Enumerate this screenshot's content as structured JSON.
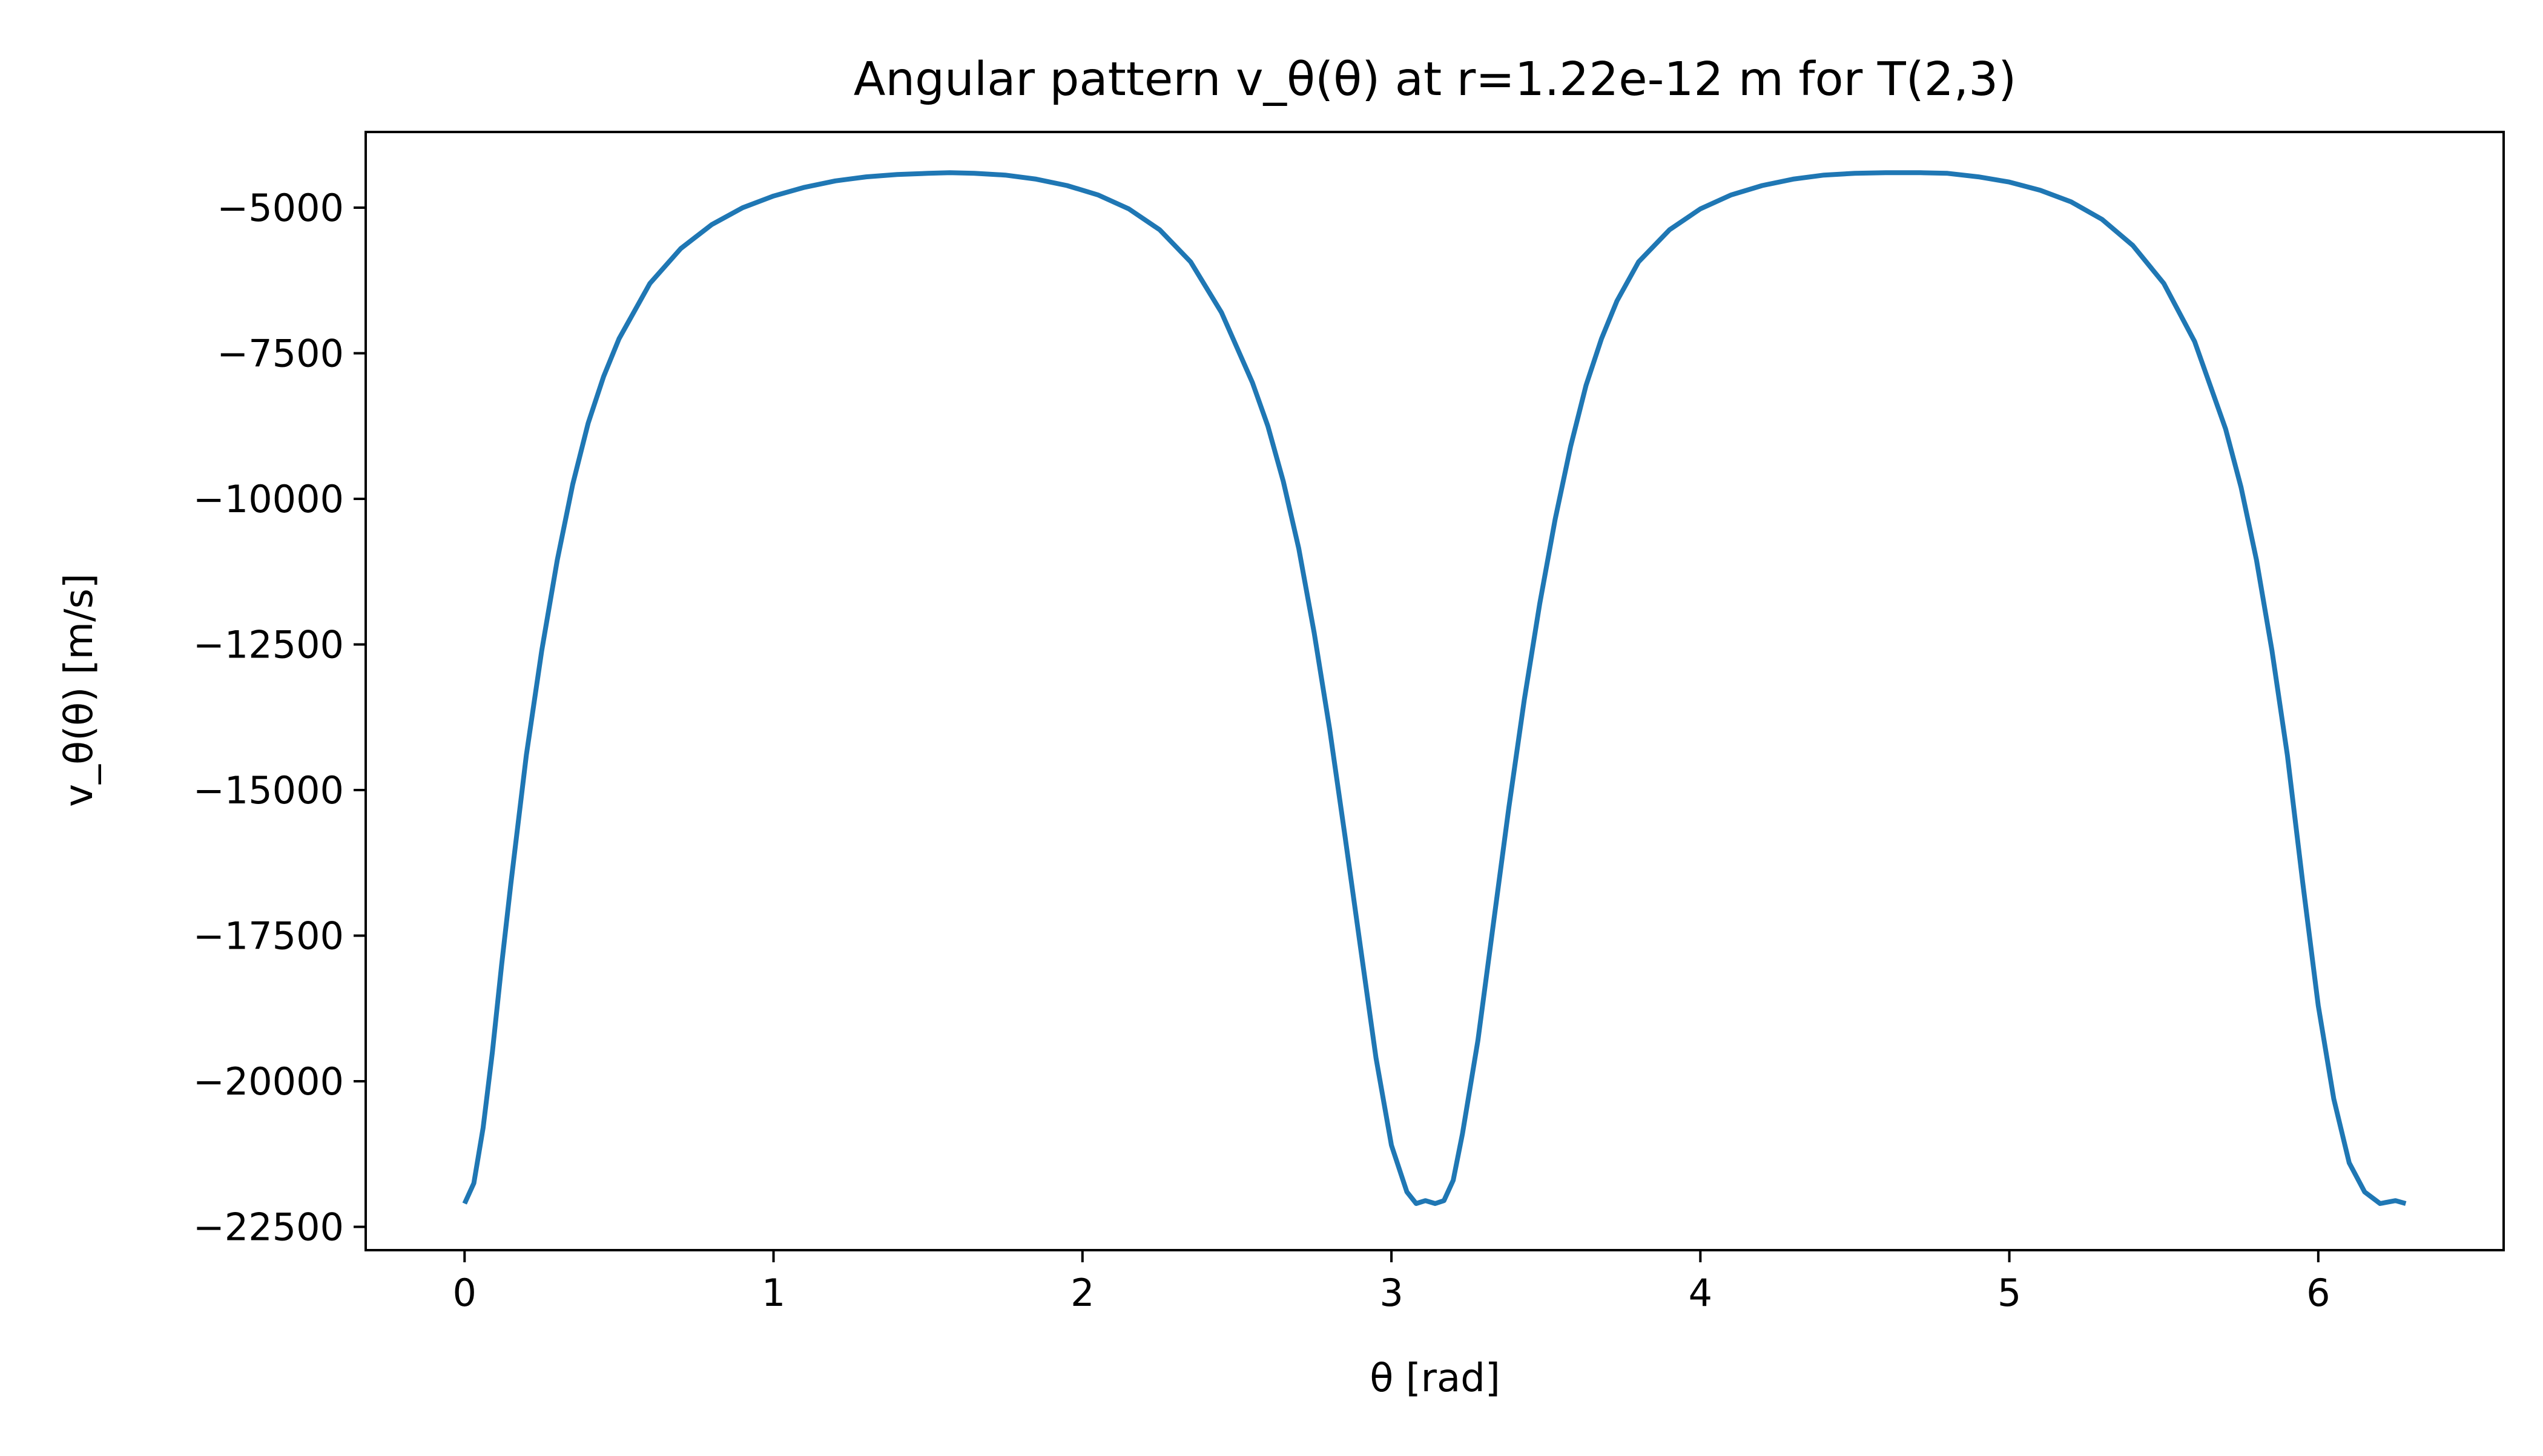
{
  "chart_data": {
    "type": "line",
    "title": "Angular pattern v_θ(θ) at r=1.22e-12 m for T(2,3)",
    "xlabel": "θ [rad]",
    "ylabel": "v_θ(θ) [m/s]",
    "xlim": [
      -0.32,
      6.6
    ],
    "ylim": [
      -22900,
      -3700
    ],
    "xticks": [
      0,
      1,
      2,
      3,
      4,
      5,
      6
    ],
    "xtick_labels": [
      "0",
      "1",
      "2",
      "3",
      "4",
      "5",
      "6"
    ],
    "yticks": [
      -5000,
      -7500,
      -10000,
      -12500,
      -15000,
      -17500,
      -20000,
      -22500
    ],
    "ytick_labels": [
      "−5000",
      "−7500",
      "−10000",
      "−12500",
      "−15000",
      "−17500",
      "−20000",
      "−22500"
    ],
    "grid": false,
    "legend": "none",
    "line_color": "#1f77b4",
    "series": [
      {
        "x": [
          0,
          0.03,
          0.06,
          0.09,
          0.12,
          0.15,
          0.2,
          0.25,
          0.3,
          0.35,
          0.4,
          0.45,
          0.5,
          0.6,
          0.7,
          0.8,
          0.9,
          1.0,
          1.1,
          1.2,
          1.3,
          1.4,
          1.5,
          1.5708,
          1.65,
          1.75,
          1.85,
          1.95,
          2.05,
          2.15,
          2.25,
          2.35,
          2.45,
          2.55,
          2.6,
          2.65,
          2.7,
          2.75,
          2.8,
          2.85,
          2.9,
          2.95,
          3.0,
          3.05,
          3.08,
          3.11,
          3.1416,
          3.17,
          3.2,
          3.23,
          3.28,
          3.33,
          3.38,
          3.43,
          3.48,
          3.53,
          3.58,
          3.63,
          3.68,
          3.73,
          3.8,
          3.9,
          4.0,
          4.1,
          4.2,
          4.3,
          4.4,
          4.5,
          4.6,
          4.7124,
          4.8,
          4.9,
          5.0,
          5.1,
          5.2,
          5.3,
          5.4,
          5.5,
          5.6,
          5.7,
          5.75,
          5.8,
          5.85,
          5.9,
          5.95,
          6.0,
          6.05,
          6.1,
          6.15,
          6.2,
          6.25,
          6.2832
        ],
        "y": [
          -22100,
          -21750,
          -20800,
          -19500,
          -18000,
          -16600,
          -14400,
          -12600,
          -11050,
          -9750,
          -8700,
          -7900,
          -7250,
          -6300,
          -5700,
          -5290,
          -5000,
          -4800,
          -4650,
          -4540,
          -4470,
          -4430,
          -4410,
          -4400,
          -4410,
          -4440,
          -4510,
          -4620,
          -4780,
          -5020,
          -5380,
          -5930,
          -6800,
          -8000,
          -8750,
          -9700,
          -10850,
          -12300,
          -13950,
          -15800,
          -17700,
          -19600,
          -21100,
          -21900,
          -22100,
          -22050,
          -22100,
          -22050,
          -21700,
          -20900,
          -19300,
          -17300,
          -15300,
          -13450,
          -11800,
          -10350,
          -9100,
          -8050,
          -7250,
          -6600,
          -5930,
          -5380,
          -5020,
          -4780,
          -4620,
          -4510,
          -4440,
          -4410,
          -4400,
          -4400,
          -4410,
          -4470,
          -4560,
          -4700,
          -4900,
          -5200,
          -5650,
          -6300,
          -7300,
          -8800,
          -9800,
          -11050,
          -12600,
          -14400,
          -16600,
          -18700,
          -20300,
          -21400,
          -21900,
          -22100,
          -22050,
          -22100
        ]
      }
    ]
  }
}
